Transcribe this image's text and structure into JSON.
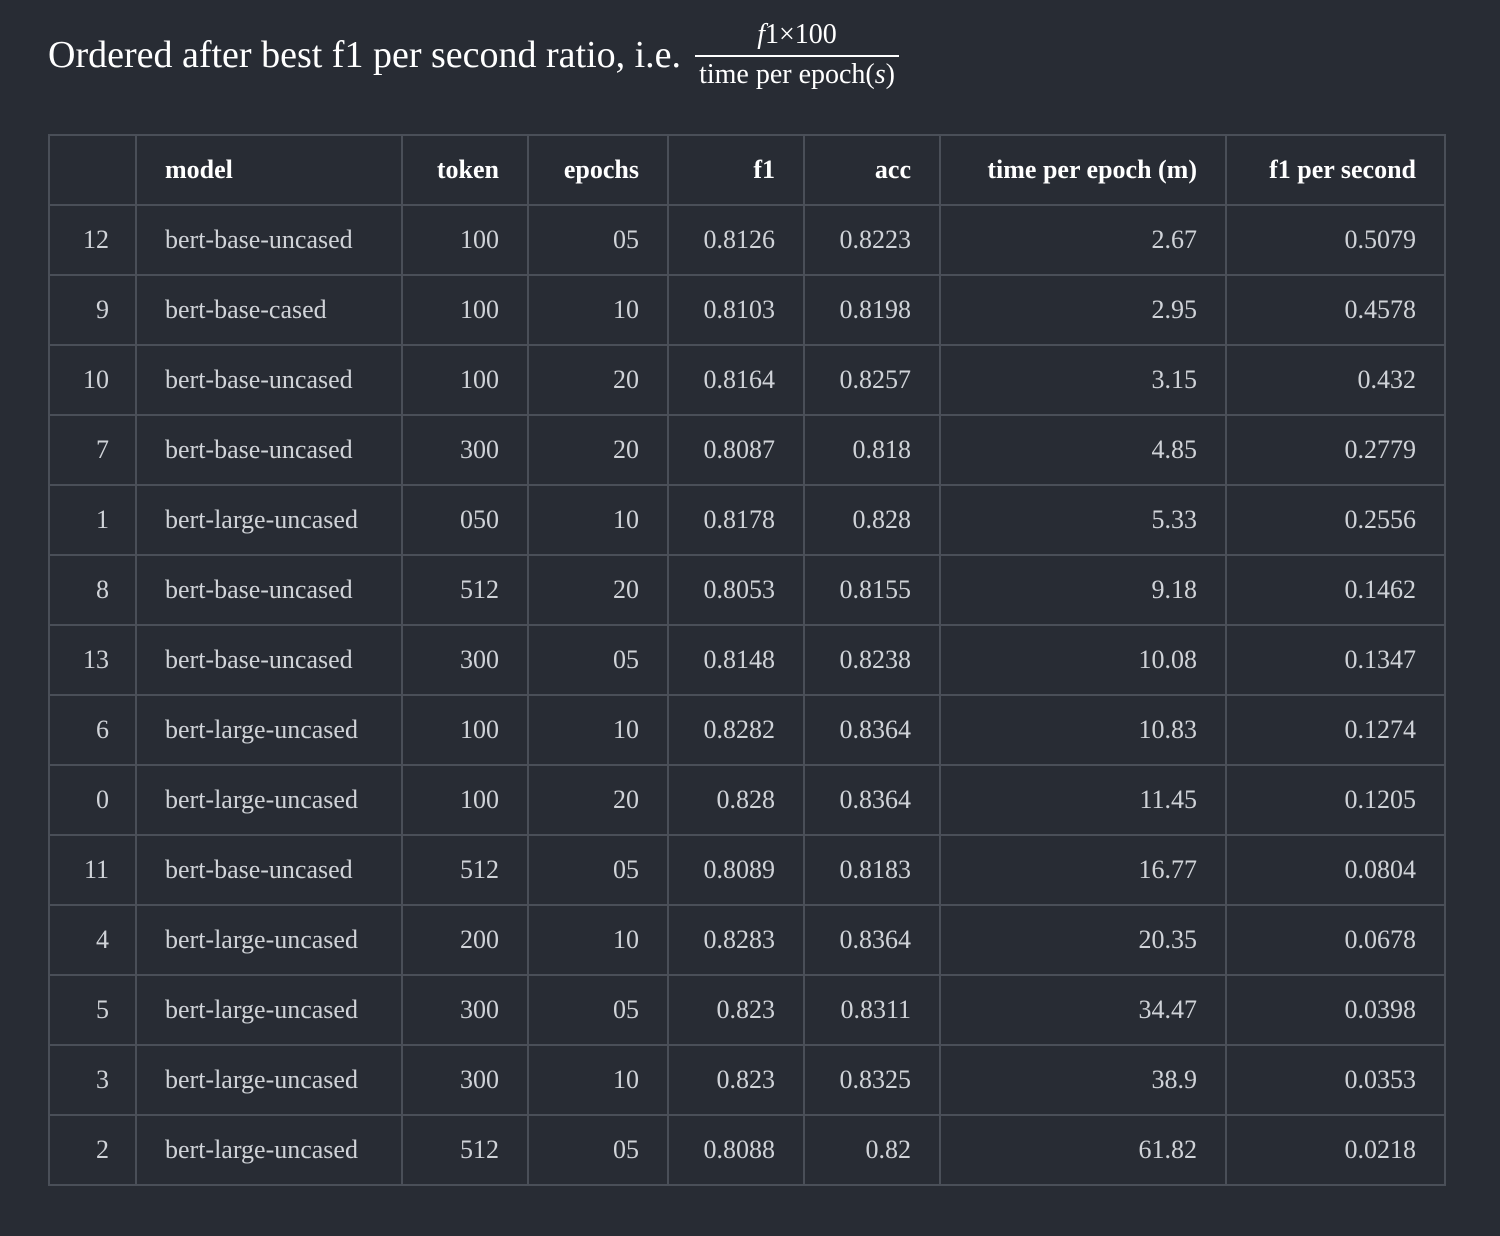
{
  "heading": {
    "text": "Ordered after best f1 per second ratio, i.e.",
    "formula": {
      "numerator_var": "f",
      "numerator_rest": "1×100",
      "denominator_text": "time per epoch(",
      "denominator_var": "s",
      "denominator_close": ")"
    }
  },
  "table": {
    "columns": [
      "",
      "model",
      "token",
      "epochs",
      "f1",
      "acc",
      "time per epoch (m)",
      "f1 per second"
    ],
    "rows": [
      {
        "index": "12",
        "model": "bert-base-uncased",
        "token": "100",
        "epochs": "05",
        "f1": "0.8126",
        "acc": "0.8223",
        "time": "2.67",
        "fps": "0.5079"
      },
      {
        "index": "9",
        "model": "bert-base-cased",
        "token": "100",
        "epochs": "10",
        "f1": "0.8103",
        "acc": "0.8198",
        "time": "2.95",
        "fps": "0.4578"
      },
      {
        "index": "10",
        "model": "bert-base-uncased",
        "token": "100",
        "epochs": "20",
        "f1": "0.8164",
        "acc": "0.8257",
        "time": "3.15",
        "fps": "0.432"
      },
      {
        "index": "7",
        "model": "bert-base-uncased",
        "token": "300",
        "epochs": "20",
        "f1": "0.8087",
        "acc": "0.818",
        "time": "4.85",
        "fps": "0.2779"
      },
      {
        "index": "1",
        "model": "bert-large-uncased",
        "token": "050",
        "epochs": "10",
        "f1": "0.8178",
        "acc": "0.828",
        "time": "5.33",
        "fps": "0.2556"
      },
      {
        "index": "8",
        "model": "bert-base-uncased",
        "token": "512",
        "epochs": "20",
        "f1": "0.8053",
        "acc": "0.8155",
        "time": "9.18",
        "fps": "0.1462"
      },
      {
        "index": "13",
        "model": "bert-base-uncased",
        "token": "300",
        "epochs": "05",
        "f1": "0.8148",
        "acc": "0.8238",
        "time": "10.08",
        "fps": "0.1347"
      },
      {
        "index": "6",
        "model": "bert-large-uncased",
        "token": "100",
        "epochs": "10",
        "f1": "0.8282",
        "acc": "0.8364",
        "time": "10.83",
        "fps": "0.1274"
      },
      {
        "index": "0",
        "model": "bert-large-uncased",
        "token": "100",
        "epochs": "20",
        "f1": "0.828",
        "acc": "0.8364",
        "time": "11.45",
        "fps": "0.1205"
      },
      {
        "index": "11",
        "model": "bert-base-uncased",
        "token": "512",
        "epochs": "05",
        "f1": "0.8089",
        "acc": "0.8183",
        "time": "16.77",
        "fps": "0.0804"
      },
      {
        "index": "4",
        "model": "bert-large-uncased",
        "token": "200",
        "epochs": "10",
        "f1": "0.8283",
        "acc": "0.8364",
        "time": "20.35",
        "fps": "0.0678"
      },
      {
        "index": "5",
        "model": "bert-large-uncased",
        "token": "300",
        "epochs": "05",
        "f1": "0.823",
        "acc": "0.8311",
        "time": "34.47",
        "fps": "0.0398"
      },
      {
        "index": "3",
        "model": "bert-large-uncased",
        "token": "300",
        "epochs": "10",
        "f1": "0.823",
        "acc": "0.8325",
        "time": "38.9",
        "fps": "0.0353"
      },
      {
        "index": "2",
        "model": "bert-large-uncased",
        "token": "512",
        "epochs": "05",
        "f1": "0.8088",
        "acc": "0.82",
        "time": "61.82",
        "fps": "0.0218"
      }
    ]
  }
}
